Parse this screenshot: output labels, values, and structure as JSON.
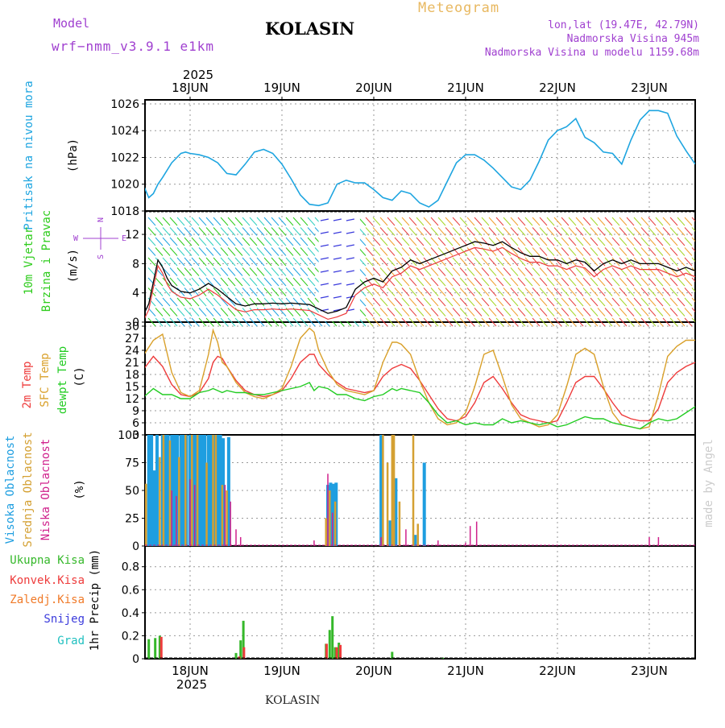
{
  "header": {
    "model_label": "Model",
    "model_name": "wrf−nmm_v3.9.1  e1km",
    "title": "KOLASIN",
    "app_title": "Meteogram",
    "lonlat": "lon,lat (19.47E, 42.79N)",
    "altitude": "Nadmorska Visina 945m",
    "model_altitude": "Nadmorska Visina u modelu 1159.68m",
    "footer_station": "KOLASIN",
    "watermark": "made by Angel"
  },
  "colors": {
    "pressure": "#1ea5e0",
    "wind_label": "#2ecc1c",
    "temp2m": "#ee3b3b",
    "sfc_temp": "#d9a02a",
    "dewpoint": "#22cc22",
    "cloud_high": "#1e9ee0",
    "cloud_mid": "#d4a032",
    "cloud_low": "#d0218c",
    "rain_total": "#35b82a",
    "rain_conv": "#ee3b3b",
    "rain_frozen": "#f07a28",
    "snow": "#3b3bdc",
    "grad": "#20c0c0",
    "compass": "#a040d0",
    "header": "#a040d0",
    "app_title": "#e8b860"
  },
  "chart_data": [
    {
      "type": "line",
      "panel": "pressure",
      "ylabel": [
        "Pritisak na nivou mora",
        "(hPa)"
      ],
      "yticks": [
        1018,
        1020,
        1022,
        1024,
        1026
      ],
      "ylim": [
        1018,
        1026.3
      ],
      "x_days": [
        "18JUN",
        "19JUN",
        "20JUN",
        "21JUN",
        "22JUN",
        "23JUN"
      ],
      "year": "2025",
      "xlim_days": [
        -0.5,
        5.5
      ],
      "series": [
        {
          "x": [
            -0.5,
            -0.45,
            -0.4,
            -0.35,
            -0.3,
            -0.2,
            -0.1,
            -0.05,
            0,
            0.1,
            0.2,
            0.3,
            0.4,
            0.5,
            0.6,
            0.7,
            0.8,
            0.9,
            1.0,
            1.1,
            1.2,
            1.3,
            1.4,
            1.5,
            1.6,
            1.7,
            1.8,
            1.9,
            2.0,
            2.1,
            2.2,
            2.3,
            2.4,
            2.5,
            2.6,
            2.7,
            2.8,
            2.9,
            3.0,
            3.1,
            3.2,
            3.3,
            3.4,
            3.5,
            3.6,
            3.7,
            3.8,
            3.9,
            4.0,
            4.1,
            4.2,
            4.3,
            4.4,
            4.5,
            4.6,
            4.7,
            4.8,
            4.9,
            5.0,
            5.1,
            5.2,
            5.3,
            5.4,
            5.5
          ],
          "values": [
            1019.8,
            1019.0,
            1019.3,
            1020.0,
            1020.5,
            1021.6,
            1022.3,
            1022.4,
            1022.3,
            1022.2,
            1022.0,
            1021.6,
            1020.8,
            1020.7,
            1021.5,
            1022.4,
            1022.6,
            1022.3,
            1021.5,
            1020.4,
            1019.2,
            1018.5,
            1018.4,
            1018.6,
            1020.0,
            1020.3,
            1020.1,
            1020.1,
            1019.6,
            1019.0,
            1018.8,
            1019.5,
            1019.3,
            1018.6,
            1018.3,
            1018.8,
            1020.2,
            1021.6,
            1022.2,
            1022.2,
            1021.8,
            1021.2,
            1020.5,
            1019.8,
            1019.6,
            1020.3,
            1021.7,
            1023.3,
            1024.0,
            1024.3,
            1024.9,
            1023.5,
            1023.1,
            1022.4,
            1022.3,
            1021.5,
            1023.3,
            1024.8,
            1025.5,
            1025.5,
            1025.3,
            1023.6,
            1022.5,
            1021.5
          ]
        }
      ]
    },
    {
      "type": "line",
      "panel": "wind",
      "ylabel": [
        "10m Vjetar",
        "Brzina i Pravac",
        "(m/s)"
      ],
      "compass": {
        "N": "N",
        "S": "S",
        "W": "W",
        "E": "E"
      },
      "yticks": [
        0,
        4,
        8,
        12
      ],
      "ylim": [
        0,
        15.2
      ],
      "series": [
        {
          "name": "wind speed",
          "x": [
            -0.5,
            -0.45,
            -0.4,
            -0.35,
            -0.3,
            -0.25,
            -0.2,
            -0.1,
            0,
            0.1,
            0.2,
            0.3,
            0.4,
            0.5,
            0.6,
            0.7,
            0.8,
            0.9,
            1.0,
            1.1,
            1.2,
            1.3,
            1.4,
            1.5,
            1.6,
            1.7,
            1.8,
            1.9,
            2.0,
            2.1,
            2.2,
            2.3,
            2.4,
            2.5,
            2.6,
            2.7,
            2.8,
            2.9,
            3.0,
            3.1,
            3.2,
            3.3,
            3.4,
            3.5,
            3.6,
            3.7,
            3.8,
            3.9,
            4.0,
            4.1,
            4.2,
            4.3,
            4.4,
            4.5,
            4.6,
            4.7,
            4.8,
            4.9,
            5.0,
            5.1,
            5.2,
            5.3,
            5.4,
            5.5
          ],
          "values": [
            1.2,
            2.5,
            5.5,
            8.5,
            7.5,
            6.0,
            5.0,
            4.2,
            4.0,
            4.5,
            5.3,
            4.5,
            3.5,
            2.5,
            2.2,
            2.5,
            2.5,
            2.6,
            2.5,
            2.6,
            2.5,
            2.4,
            1.8,
            1.2,
            1.5,
            2.0,
            4.5,
            5.5,
            6.0,
            5.5,
            7.0,
            7.5,
            8.5,
            8.0,
            8.5,
            9.0,
            9.5,
            10.0,
            10.5,
            11.0,
            10.8,
            10.5,
            11.0,
            10.2,
            9.5,
            9.0,
            9.0,
            8.5,
            8.5,
            8.0,
            8.5,
            8.2,
            7.0,
            8.0,
            8.5,
            8.0,
            8.5,
            8.0,
            8.0,
            8.0,
            7.5,
            7.0,
            7.5,
            7.0
          ]
        }
      ]
    },
    {
      "type": "line",
      "panel": "temperature",
      "ylabel": [
        "2m Temp",
        "SFC Temp",
        "dewpt Temp",
        "(C)"
      ],
      "yticks": [
        3,
        6,
        9,
        12,
        15,
        18,
        21,
        24,
        27,
        30
      ],
      "ylim": [
        3,
        31
      ],
      "x": [
        -0.5,
        -0.4,
        -0.3,
        -0.2,
        -0.1,
        0,
        0.1,
        0.2,
        0.25,
        0.3,
        0.35,
        0.4,
        0.5,
        0.6,
        0.7,
        0.8,
        0.9,
        1.0,
        1.1,
        1.2,
        1.3,
        1.35,
        1.4,
        1.5,
        1.6,
        1.7,
        1.8,
        1.9,
        2.0,
        2.1,
        2.2,
        2.25,
        2.3,
        2.4,
        2.5,
        2.6,
        2.7,
        2.8,
        2.9,
        3.0,
        3.1,
        3.2,
        3.3,
        3.4,
        3.5,
        3.6,
        3.7,
        3.8,
        3.9,
        4.0,
        4.1,
        4.2,
        4.3,
        4.4,
        4.5,
        4.6,
        4.7,
        4.8,
        4.9,
        5.0,
        5.1,
        5.2,
        5.3,
        5.4,
        5.5
      ],
      "series": [
        {
          "name": "2m Temp",
          "values": [
            19.5,
            22.5,
            20.0,
            15.5,
            13.0,
            12.5,
            13.5,
            17.0,
            21.0,
            22.5,
            22.0,
            20.0,
            16.5,
            14.0,
            13.0,
            12.5,
            13.0,
            14.0,
            17.0,
            21.0,
            23.0,
            23.0,
            20.5,
            18.0,
            16.0,
            14.5,
            14.0,
            13.5,
            14.0,
            17.5,
            19.5,
            20.0,
            20.5,
            19.5,
            16.5,
            13.0,
            9.5,
            7.0,
            6.5,
            7.5,
            11.0,
            16.0,
            17.5,
            14.5,
            11.0,
            8.0,
            7.0,
            6.5,
            6.0,
            6.5,
            11.0,
            16.0,
            17.5,
            17.5,
            14.5,
            11.0,
            8.0,
            7.0,
            6.5,
            6.5,
            9.5,
            16.0,
            18.5,
            20.0,
            21.0
          ]
        },
        {
          "name": "SFC Temp",
          "values": [
            23.0,
            26.5,
            28.0,
            18.5,
            13.5,
            12.5,
            14.0,
            23.0,
            29.0,
            26.0,
            21.0,
            20.0,
            16.0,
            13.5,
            12.5,
            12.0,
            13.0,
            14.5,
            20.0,
            27.0,
            29.5,
            28.5,
            24.0,
            19.0,
            15.5,
            14.0,
            13.5,
            13.0,
            14.0,
            21.0,
            26.0,
            26.0,
            25.5,
            23.0,
            16.5,
            11.0,
            7.0,
            5.5,
            6.0,
            8.5,
            15.0,
            23.0,
            24.0,
            17.5,
            10.5,
            7.0,
            6.0,
            5.0,
            5.5,
            8.0,
            15.0,
            23.0,
            24.5,
            23.0,
            15.0,
            8.5,
            5.5,
            5.0,
            4.5,
            5.0,
            13.0,
            22.5,
            25.0,
            26.5,
            26.5
          ]
        },
        {
          "name": "dewpt Temp",
          "values": [
            12.5,
            14.5,
            13.0,
            13.0,
            12.0,
            12.0,
            13.5,
            14.0,
            14.5,
            14.0,
            13.5,
            14.0,
            13.5,
            13.5,
            13.0,
            13.0,
            13.5,
            14.0,
            14.5,
            15.0,
            16.0,
            14.0,
            15.0,
            14.5,
            13.0,
            13.0,
            12.0,
            11.5,
            12.5,
            13.0,
            14.5,
            14.0,
            14.5,
            14.0,
            13.5,
            11.0,
            8.0,
            6.0,
            6.5,
            5.5,
            6.0,
            5.5,
            5.5,
            7.0,
            6.0,
            6.5,
            6.0,
            5.5,
            6.0,
            5.0,
            5.5,
            6.5,
            7.5,
            7.0,
            7.0,
            6.0,
            5.5,
            5.0,
            4.5,
            6.0,
            7.0,
            6.5,
            7.0,
            8.5,
            10.0
          ]
        }
      ]
    },
    {
      "type": "bar",
      "panel": "clouds",
      "ylabel": [
        "Visoka Oblacnost",
        "Srednja Oblacnost",
        "Niska Oblacnost",
        "(%)"
      ],
      "yticks": [
        0,
        25,
        50,
        75,
        100
      ],
      "ylim": [
        0,
        100
      ],
      "series": [
        {
          "name": "Visoka Oblacnost",
          "x": [
            -0.45,
            -0.42,
            -0.39,
            -0.36,
            -0.3,
            -0.27,
            -0.24,
            -0.2,
            -0.17,
            -0.14,
            -0.1,
            -0.07,
            -0.04,
            0.0,
            0.03,
            0.06,
            0.1,
            0.13,
            0.16,
            0.2,
            0.23,
            0.26,
            0.3,
            0.33,
            0.36,
            0.42,
            1.5,
            1.53,
            1.56,
            1.59,
            2.08,
            2.18,
            2.24,
            2.45,
            2.55
          ],
          "values": [
            100,
            100,
            68,
            100,
            100,
            100,
            100,
            100,
            100,
            100,
            100,
            100,
            100,
            100,
            100,
            100,
            100,
            100,
            100,
            100,
            100,
            100,
            100,
            100,
            97,
            98,
            55,
            57,
            56,
            57,
            100,
            23,
            61,
            10,
            75
          ]
        },
        {
          "name": "Srednja Oblacnost",
          "x": [
            -0.48,
            -0.33,
            -0.29,
            -0.22,
            -0.12,
            -0.05,
            0.02,
            0.08,
            0.18,
            0.25,
            0.28,
            0.35,
            0.4,
            1.48,
            1.52,
            1.58,
            2.1,
            2.15,
            2.2,
            2.22,
            2.28,
            2.43,
            2.48
          ],
          "values": [
            56,
            80,
            100,
            95,
            80,
            100,
            100,
            100,
            75,
            100,
            100,
            55,
            50,
            25,
            50,
            40,
            100,
            75,
            100,
            100,
            40,
            100,
            20
          ]
        },
        {
          "name": "Niska Oblacnost",
          "x": [
            -0.2,
            -0.15,
            0.0,
            0.05,
            0.38,
            0.44,
            0.5,
            0.55,
            1.35,
            1.5,
            1.55,
            2.08,
            2.35,
            2.7,
            3.0,
            3.05,
            3.12,
            5.0,
            5.1
          ],
          "values": [
            50,
            45,
            60,
            55,
            55,
            40,
            15,
            8,
            5,
            65,
            30,
            8,
            15,
            5,
            3,
            18,
            22,
            8,
            8
          ]
        }
      ]
    },
    {
      "type": "bar",
      "panel": "precipitation",
      "ylabel": [
        "1hr Precip (mm)"
      ],
      "legend": [
        "Ukupna  Kisa",
        "Konvek.Kisa",
        "Zaledj.Kisa",
        "Snijeg",
        "Grad"
      ],
      "yticks": [
        0,
        0.2,
        0.4,
        0.6,
        0.8
      ],
      "ylim": [
        0,
        0.98
      ],
      "series": [
        {
          "name": "Ukupna  Kisa",
          "x": [
            -0.45,
            -0.38,
            -0.33,
            0.5,
            0.55,
            0.58,
            1.48,
            1.52,
            1.55,
            1.58,
            1.62,
            2.2,
            2.75
          ],
          "values": [
            0.17,
            0.18,
            0.2,
            0.05,
            0.16,
            0.33,
            0.13,
            0.25,
            0.37,
            0.1,
            0.14,
            0.06,
            0.01
          ]
        },
        {
          "name": "Konvek.Kisa",
          "x": [
            -0.34,
            0.51,
            0.56,
            1.46,
            1.57,
            1.61
          ],
          "values": [
            0.19,
            0.02,
            0.1,
            0.13,
            0.1,
            0.12
          ]
        }
      ]
    }
  ]
}
